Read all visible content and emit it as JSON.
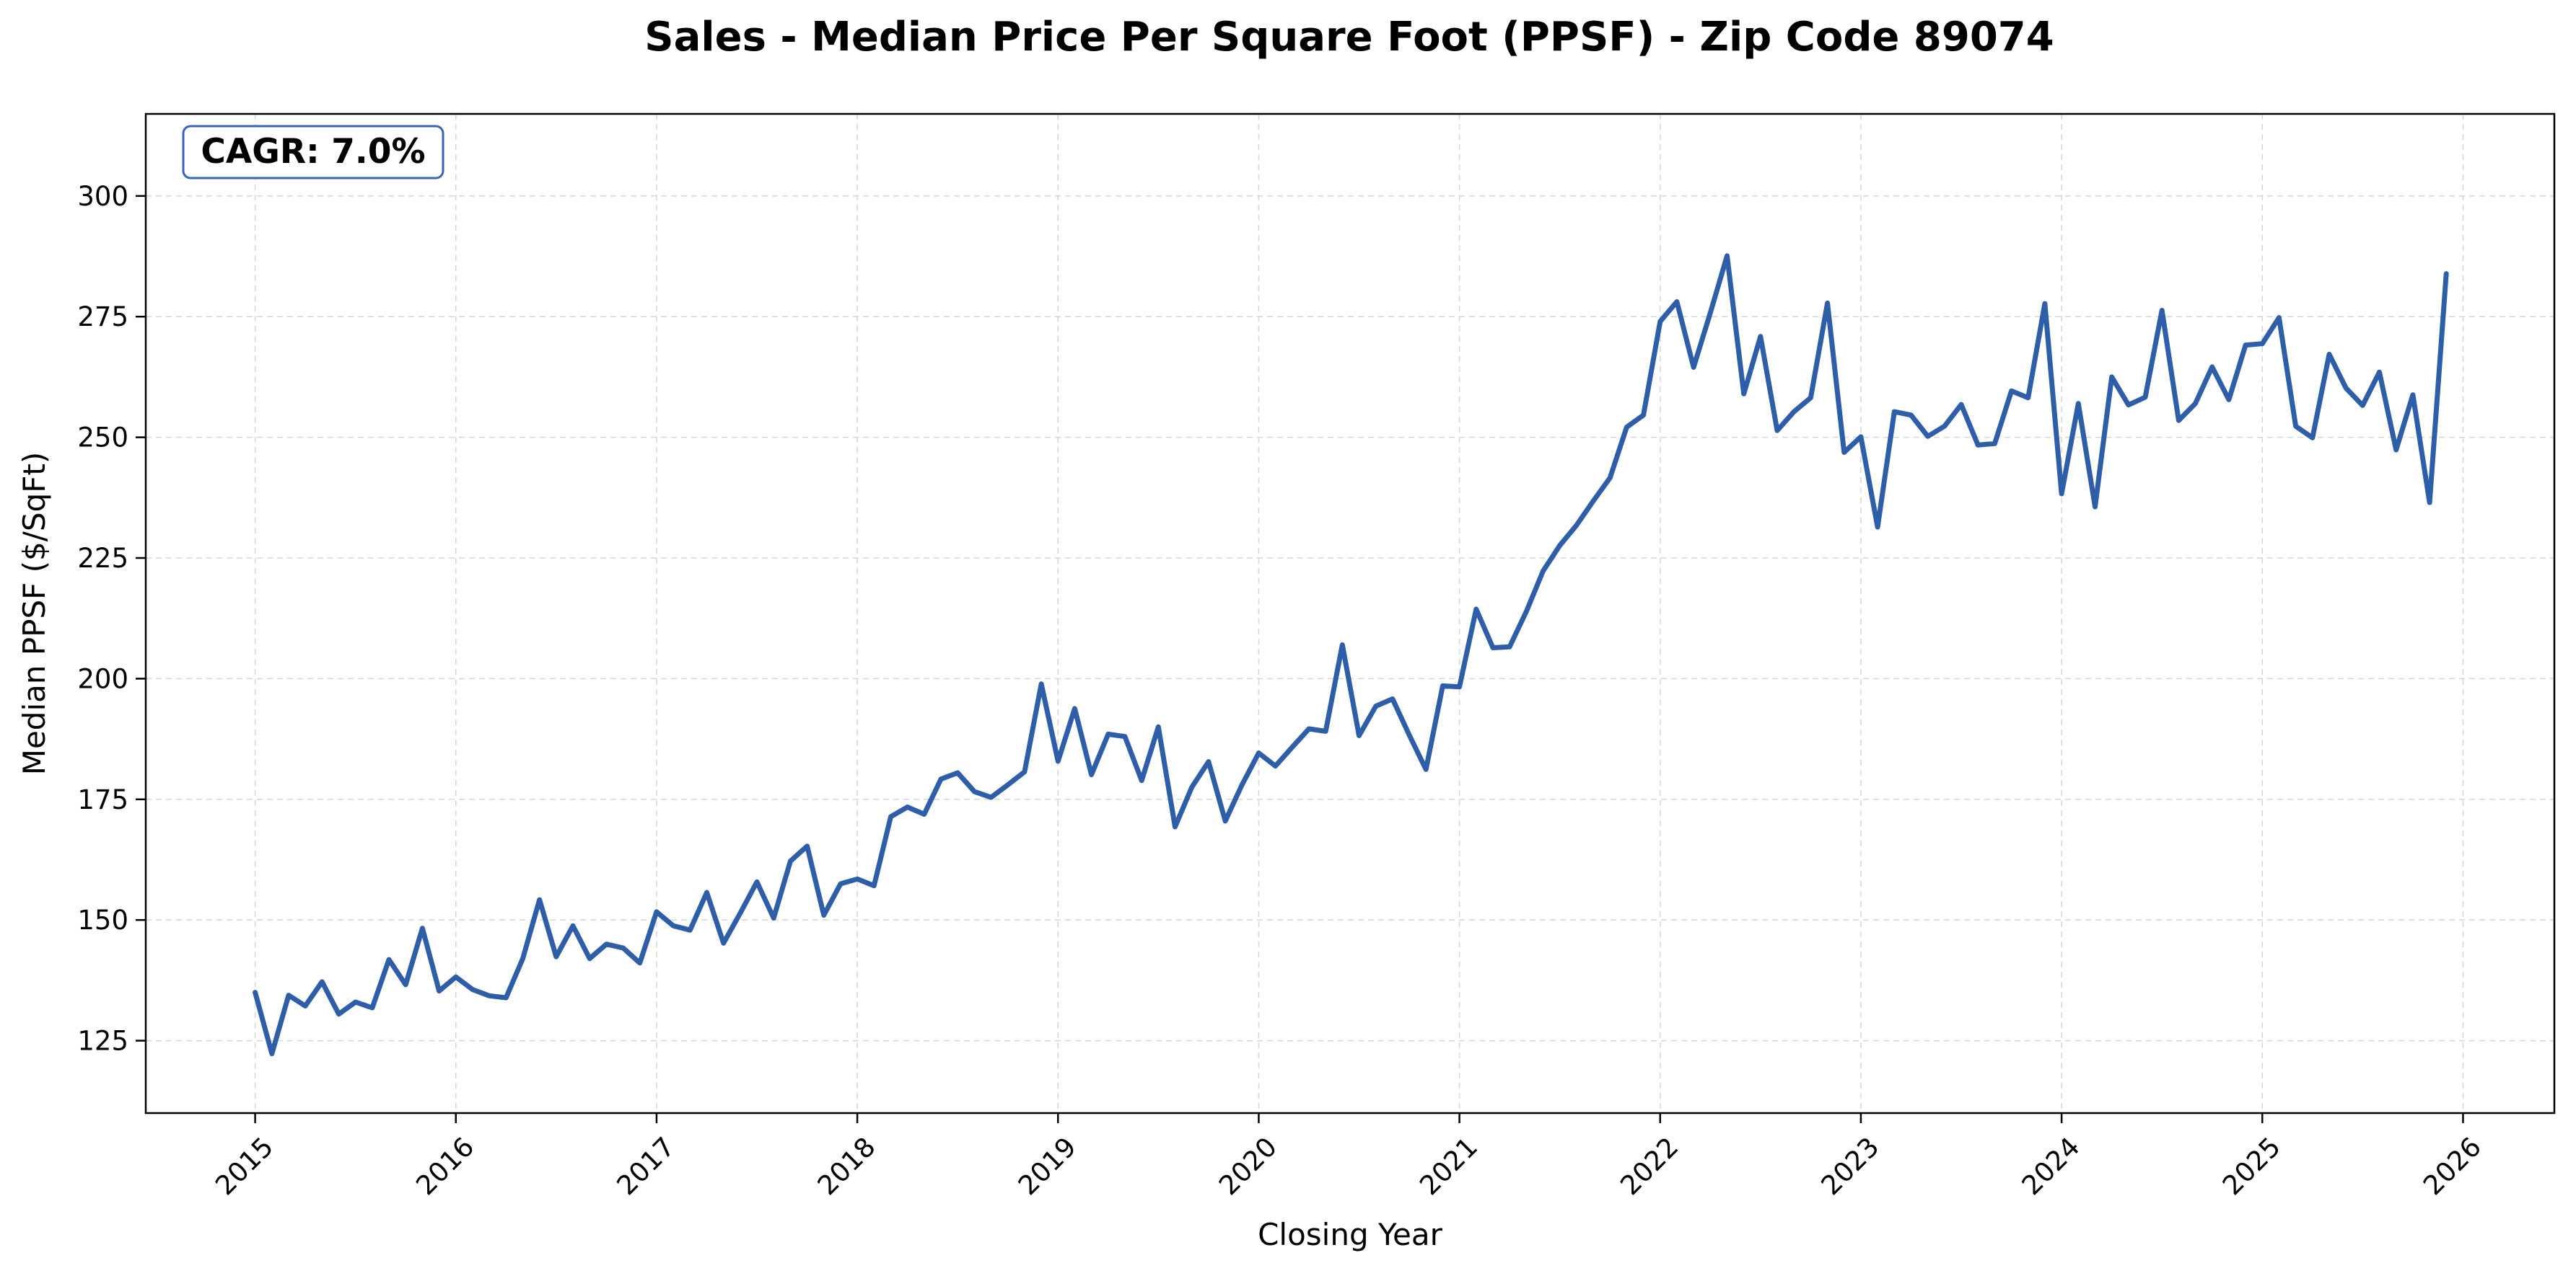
{
  "chart_data": {
    "type": "line",
    "title": "Sales - Median Price Per Square Foot (PPSF) - Zip Code 89074",
    "xlabel": "Closing Year",
    "ylabel": "Median PPSF ($/SqFt)",
    "annotation": "CAGR: 7.0%",
    "x_ticks": [
      "2015",
      "2016",
      "2017",
      "2018",
      "2019",
      "2020",
      "2021",
      "2022",
      "2023",
      "2024",
      "2025",
      "2026"
    ],
    "y_ticks": [
      125,
      150,
      175,
      200,
      225,
      250,
      275,
      300
    ],
    "xlim": [
      "2014-06-15",
      "2026-06-15"
    ],
    "ylim": [
      110,
      317
    ],
    "grid": true,
    "line_color": "#2f5ea8",
    "series": [
      {
        "x": [
          "2015-01",
          "2015-02",
          "2015-03",
          "2015-04",
          "2015-05",
          "2015-06",
          "2015-07",
          "2015-08",
          "2015-09",
          "2015-10",
          "2015-11",
          "2015-12",
          "2016-01",
          "2016-02",
          "2016-03",
          "2016-04",
          "2016-05",
          "2016-06",
          "2016-07",
          "2016-08",
          "2016-09",
          "2016-10",
          "2016-11",
          "2016-12",
          "2017-01",
          "2017-02",
          "2017-03",
          "2017-04",
          "2017-05",
          "2017-06",
          "2017-07",
          "2017-08",
          "2017-09",
          "2017-10",
          "2017-11",
          "2017-12",
          "2018-01",
          "2018-02",
          "2018-03",
          "2018-04",
          "2018-05",
          "2018-06",
          "2018-07",
          "2018-08",
          "2018-09",
          "2018-10",
          "2018-11",
          "2018-12",
          "2019-01",
          "2019-02",
          "2019-03",
          "2019-04",
          "2019-05",
          "2019-06",
          "2019-07",
          "2019-08",
          "2019-09",
          "2019-10",
          "2019-11",
          "2019-12",
          "2020-01",
          "2020-02",
          "2020-03",
          "2020-04",
          "2020-05",
          "2020-06",
          "2020-07",
          "2020-08",
          "2020-09",
          "2020-10",
          "2020-11",
          "2020-12",
          "2021-01",
          "2021-02",
          "2021-03",
          "2021-04",
          "2021-05",
          "2021-06",
          "2021-07",
          "2021-08",
          "2021-09",
          "2021-10",
          "2021-11",
          "2021-12",
          "2022-01",
          "2022-02",
          "2022-03",
          "2022-04",
          "2022-05",
          "2022-06",
          "2022-07",
          "2022-08",
          "2022-09",
          "2022-10",
          "2022-11",
          "2022-12",
          "2023-01",
          "2023-02",
          "2023-03",
          "2023-04",
          "2023-05",
          "2023-06",
          "2023-07",
          "2023-08",
          "2023-09",
          "2023-10",
          "2023-11",
          "2023-12",
          "2024-01",
          "2024-02",
          "2024-03",
          "2024-04",
          "2024-05",
          "2024-06",
          "2024-07",
          "2024-08",
          "2024-09",
          "2024-10",
          "2024-11",
          "2024-12",
          "2025-01",
          "2025-02",
          "2025-03",
          "2025-04",
          "2025-05",
          "2025-06",
          "2025-07",
          "2025-08",
          "2025-09",
          "2025-10",
          "2025-11",
          "2025-12"
        ],
        "y": [
          135.0,
          122.3,
          134.4,
          132.2,
          137.2,
          130.5,
          133.0,
          131.8,
          141.8,
          136.6,
          148.3,
          135.3,
          138.2,
          135.6,
          134.3,
          133.9,
          142.0,
          154.2,
          142.4,
          148.8,
          142.0,
          145.0,
          144.2,
          141.1,
          151.7,
          148.8,
          147.9,
          155.7,
          145.2,
          151.4,
          157.9,
          150.4,
          162.2,
          165.3,
          151.0,
          157.5,
          158.5,
          157.1,
          171.4,
          173.4,
          171.9,
          179.2,
          180.5,
          176.6,
          175.4,
          178.0,
          180.7,
          198.9,
          182.9,
          193.8,
          180.1,
          188.5,
          188.0,
          178.9,
          190.0,
          169.3,
          177.5,
          182.8,
          170.5,
          178.0,
          184.6,
          181.9,
          185.8,
          189.6,
          189.1,
          207.0,
          188.2,
          194.3,
          195.8,
          188.3,
          181.2,
          198.5,
          198.3,
          214.4,
          206.4,
          206.6,
          213.9,
          222.3,
          227.6,
          231.8,
          236.8,
          241.6,
          252.1,
          254.6,
          274.0,
          278.1,
          264.5,
          275.8,
          287.6,
          259.0,
          270.9,
          251.4,
          255.3,
          258.2,
          277.8,
          246.9,
          250.1,
          231.4,
          255.3,
          254.6,
          250.2,
          252.3,
          256.8,
          248.4,
          248.7,
          259.6,
          258.2,
          277.7,
          238.3,
          257.0,
          235.6,
          262.5,
          256.7,
          258.3,
          276.3,
          253.5,
          257.0,
          264.6,
          257.8,
          269.1,
          269.4,
          274.8,
          252.3,
          249.9,
          267.2,
          260.2,
          256.6,
          263.5,
          247.4,
          258.8,
          236.5,
          283.9
        ]
      }
    ]
  }
}
